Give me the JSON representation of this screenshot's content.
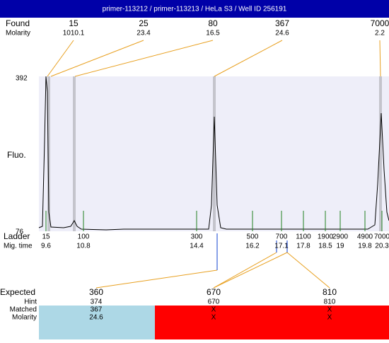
{
  "header": {
    "title": "primer-113212 / primer-113213 / HeLa S3 / Well ID 256191"
  },
  "found": {
    "label": "Found",
    "molarity_label": "Molarity",
    "peaks": [
      {
        "size": "15",
        "molarity": "1010.1"
      },
      {
        "size": "25",
        "molarity": "23.4"
      },
      {
        "size": "80",
        "molarity": "16.5"
      },
      {
        "size": "367",
        "molarity": "24.6"
      },
      {
        "size": "7000",
        "molarity": "2.2"
      }
    ]
  },
  "axis": {
    "label": "Fluo.",
    "top": "392",
    "bottom": "76"
  },
  "ladder": {
    "label": "Ladder",
    "time_label": "Mig. time",
    "items": [
      {
        "size": "15",
        "time": "9.6"
      },
      {
        "size": "100",
        "time": "10.8"
      },
      {
        "size": "300",
        "time": "14.4"
      },
      {
        "size": "500",
        "time": "16.2"
      },
      {
        "size": "700",
        "time": "17.1"
      },
      {
        "size": "1100",
        "time": "17.8"
      },
      {
        "size": "1900",
        "time": "18.5"
      },
      {
        "size": "2900",
        "time": "19"
      },
      {
        "size": "4900",
        "time": "19.8"
      },
      {
        "size": "7000",
        "time": "20.3"
      }
    ]
  },
  "expected": {
    "label": "Expected",
    "hint_label": "Hint",
    "matched_label": "Matched",
    "molarity_label": "Molarity",
    "items": [
      {
        "size": "360",
        "hint": "374",
        "matched": "367",
        "molarity": "24.6"
      },
      {
        "size": "670",
        "hint": "670",
        "matched": "X",
        "molarity": "X"
      },
      {
        "size": "810",
        "hint": "810",
        "matched": "X",
        "molarity": "X"
      }
    ]
  }
}
